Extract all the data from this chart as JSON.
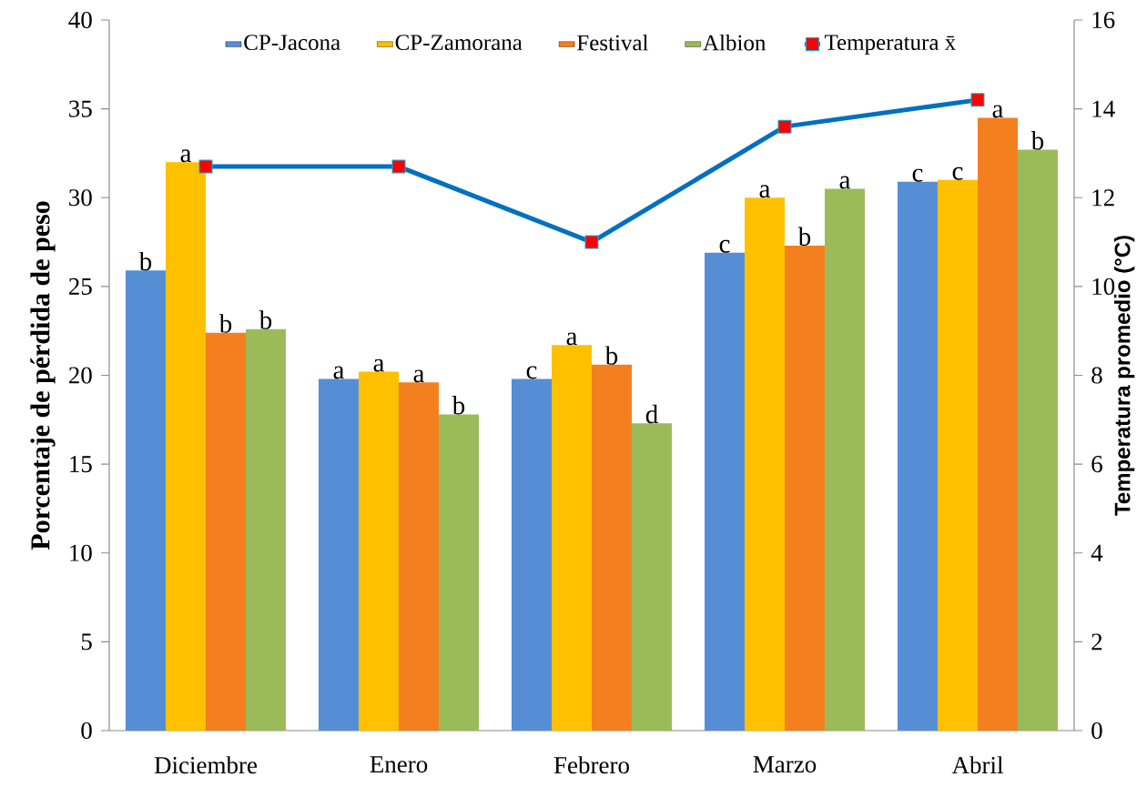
{
  "chart_data": {
    "type": "bar",
    "ylabel": "Porcentaje de pérdida de peso",
    "y2label": "Temperatura promedio  (°C)",
    "categories": [
      "Diciembre",
      "Enero",
      "Febrero",
      "Marzo",
      "Abril"
    ],
    "series": [
      {
        "name": "CP-Jacona",
        "color": "#558ed5",
        "values": [
          25.9,
          19.8,
          19.8,
          26.9,
          30.9
        ],
        "value_labels": [
          "b",
          "a",
          "c",
          "c",
          "c"
        ]
      },
      {
        "name": "CP-Zamorana",
        "color": "#ffc000",
        "values": [
          32.0,
          20.2,
          21.7,
          30.0,
          31.0
        ],
        "value_labels": [
          "a",
          "a",
          "a",
          "a",
          "c"
        ]
      },
      {
        "name": "Festival",
        "color": "#f47f1f",
        "values": [
          22.4,
          19.6,
          20.6,
          27.3,
          34.5
        ],
        "value_labels": [
          "b",
          "a",
          "b",
          "b",
          "a"
        ]
      },
      {
        "name": "Albion",
        "color": "#9bbb59",
        "values": [
          22.6,
          17.8,
          17.3,
          30.5,
          32.7
        ],
        "value_labels": [
          "b",
          "b",
          "d",
          "a",
          "b"
        ]
      },
      {
        "name": "Temperatura x̄",
        "type": "line",
        "axis": "y2",
        "color": "#0070c0",
        "marker": "square",
        "values": [
          12.7,
          12.7,
          11.0,
          13.6,
          14.2
        ]
      }
    ],
    "ylim": [
      0,
      40
    ],
    "yticks": [
      0,
      5,
      10,
      15,
      20,
      25,
      30,
      35,
      40
    ],
    "y2lim": [
      0,
      16
    ],
    "y2ticks": [
      0,
      2,
      4,
      6,
      8,
      10,
      12,
      14,
      16
    ],
    "grid": false,
    "legend": "top"
  }
}
